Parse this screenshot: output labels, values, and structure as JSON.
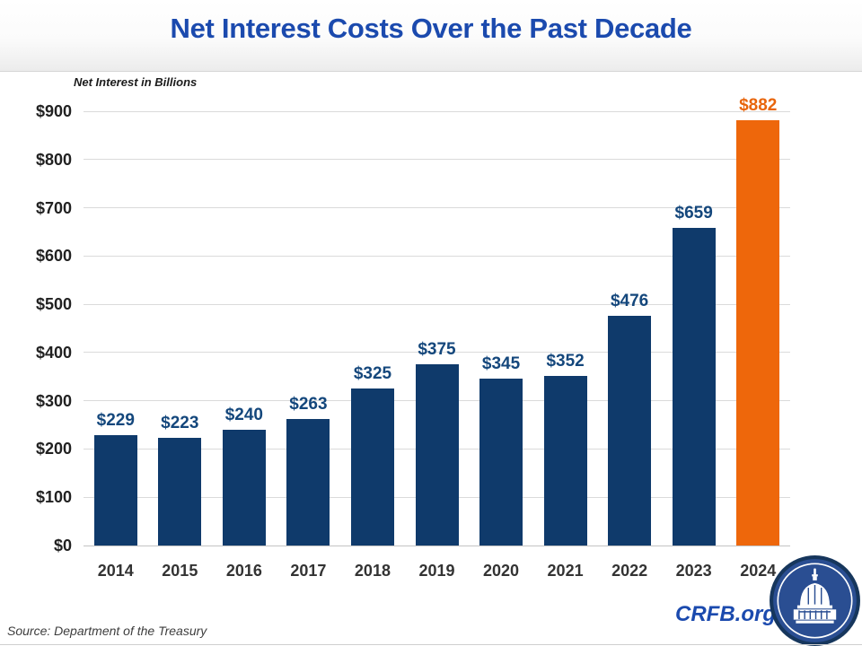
{
  "header": {
    "title": "Net Interest Costs Over the Past Decade"
  },
  "chart_data": {
    "type": "bar",
    "title": "Net Interest Costs Over the Past Decade",
    "axis_caption": "Net Interest in Billions",
    "categories": [
      "2014",
      "2015",
      "2016",
      "2017",
      "2018",
      "2019",
      "2020",
      "2021",
      "2022",
      "2023",
      "2024"
    ],
    "values": [
      229,
      223,
      240,
      263,
      325,
      375,
      345,
      352,
      476,
      659,
      882
    ],
    "value_labels": [
      "$229",
      "$223",
      "$240",
      "$263",
      "$325",
      "$375",
      "$345",
      "$352",
      "$476",
      "$659",
      "$882"
    ],
    "yticks": [
      "$0",
      "$100",
      "$200",
      "$300",
      "$400",
      "$500",
      "$600",
      "$700",
      "$800",
      "$900"
    ],
    "ylim": [
      0,
      900
    ],
    "ytick_step": 100,
    "grid": true,
    "legend": "none",
    "bar_color": "#0f3a6b",
    "highlight_index": 10,
    "highlight_color": "#ee670b",
    "label_color": "#14477c",
    "highlight_label_color": "#e8650c"
  },
  "footer": {
    "source": "Source: Department of the Treasury",
    "brand": "CRFB.org"
  },
  "logo": {
    "name": "crfb-capitol-logo",
    "ring_color": "#16365c",
    "fill_color": "#2a4e92",
    "art_color": "#ffffff"
  }
}
